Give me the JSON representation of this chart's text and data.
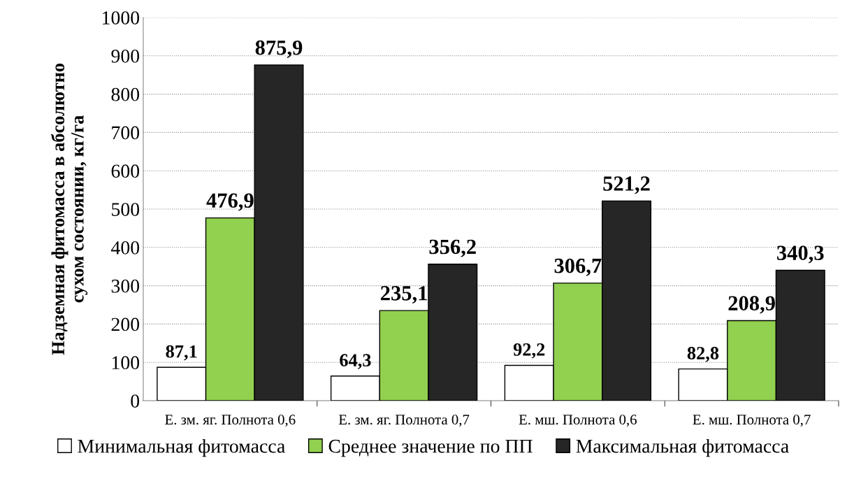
{
  "chart_data": {
    "type": "bar",
    "ylabel": "Надземная фитомасса в абсолютно\nсухом состоянии, кг/га",
    "categories": [
      "Е. зм. яг. Полнота 0,6",
      "Е. зм. яг. Полнота 0,7",
      "Е. мш. Полнота 0,6",
      "Е. мш. Полнота 0,7"
    ],
    "series": [
      {
        "name": "Минимальная фитомасса",
        "color": "#ffffff",
        "values": [
          87.1,
          64.3,
          92.2,
          82.8
        ],
        "value_labels": [
          "87,1",
          "64,3",
          "92,2",
          "82,8"
        ]
      },
      {
        "name": "Среднее значение по ПП",
        "color": "#92d050",
        "values": [
          476.9,
          235.1,
          306.7,
          208.9
        ],
        "value_labels": [
          "476,9",
          "235,1",
          "306,7",
          "208,9"
        ]
      },
      {
        "name": "Максимальная фитомасса",
        "color": "#262626",
        "values": [
          875.9,
          356.2,
          521.2,
          340.3
        ],
        "value_labels": [
          "875,9",
          "356,2",
          "521,2",
          "340,3"
        ]
      }
    ],
    "ylim": [
      0,
      1000
    ],
    "yticks": [
      0,
      100,
      200,
      300,
      400,
      500,
      600,
      700,
      800,
      900,
      1000
    ],
    "grid": "y",
    "legend": "bottom"
  }
}
